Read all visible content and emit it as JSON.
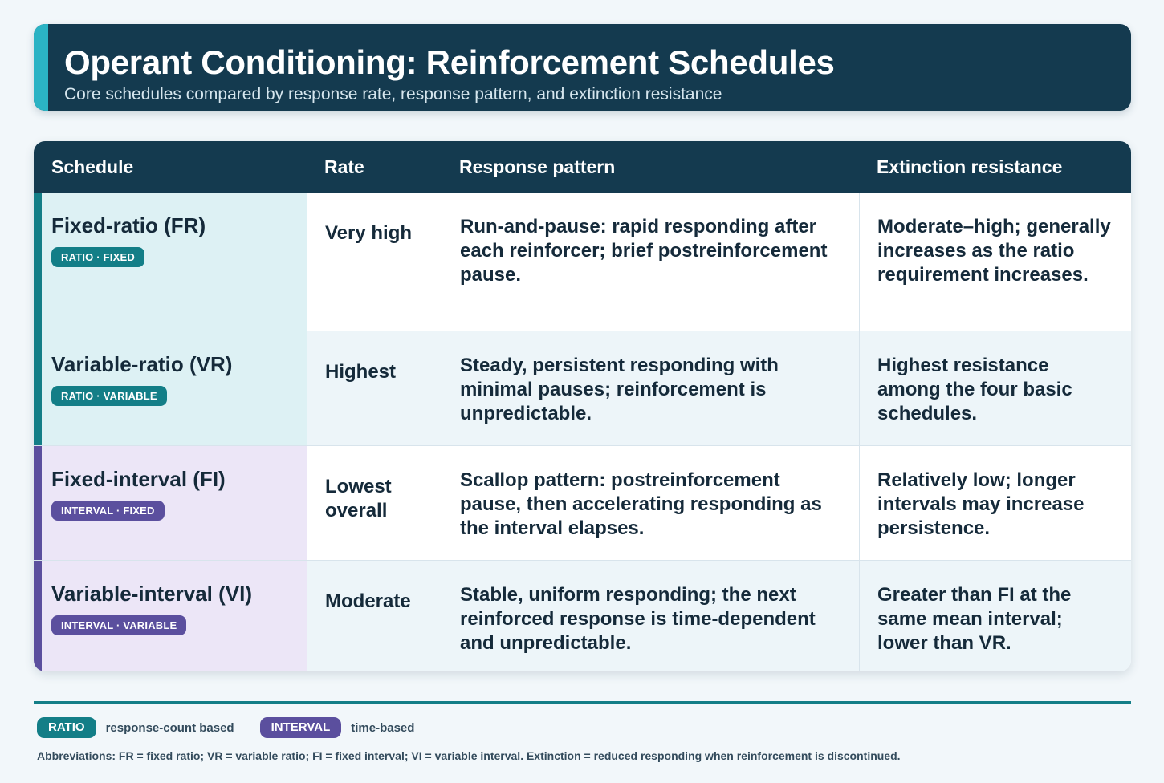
{
  "header": {
    "title": "Operant Conditioning: Reinforcement Schedules",
    "subtitle": "Core schedules compared by response rate, response pattern, and extinction resistance"
  },
  "table": {
    "columns": [
      "Schedule",
      "Rate",
      "Response pattern",
      "Extinction resistance"
    ],
    "rows": [
      {
        "name": "Fixed-ratio (FR)",
        "tag": "RATIO · FIXED",
        "rate": "Very high",
        "pattern": "Run-and-pause: rapid responding after each reinforcer; brief postreinforcement pause.",
        "extinction": "Moderate–high; generally increases as the ratio requirement increases."
      },
      {
        "name": "Variable-ratio (VR)",
        "tag": "RATIO · VARIABLE",
        "rate": "Highest",
        "pattern": "Steady, persistent responding with minimal pauses; reinforcement is unpredictable.",
        "extinction": "Highest resistance among the four basic schedules."
      },
      {
        "name": "Fixed-interval (FI)",
        "tag": "INTERVAL · FIXED",
        "rate": "Lowest overall",
        "pattern": "Scallop pattern: postreinforcement pause, then accelerating responding as the interval elapses.",
        "extinction": "Relatively low; longer intervals may increase persistence."
      },
      {
        "name": "Variable-interval (VI)",
        "tag": "INTERVAL · VARIABLE",
        "rate": "Moderate",
        "pattern": "Stable, uniform responding; the next reinforced response is time-dependent and unpredictable.",
        "extinction": "Greater than FI at the same mean interval; lower than VR."
      }
    ]
  },
  "legend": {
    "ratio_label": "RATIO",
    "ratio_desc": "response-count based",
    "interval_label": "INTERVAL",
    "interval_desc": "time-based"
  },
  "footnote": "Abbreviations: FR = fixed ratio; VR = variable ratio; FI = fixed interval; VI = variable interval. Extinction = reduced responding when reinforcement is discontinued.",
  "colors": {
    "navy": "#143a4f",
    "ratio_accent": "#137e87",
    "interval_accent": "#5b4f9e",
    "header_accent": "#2bb3c4"
  }
}
